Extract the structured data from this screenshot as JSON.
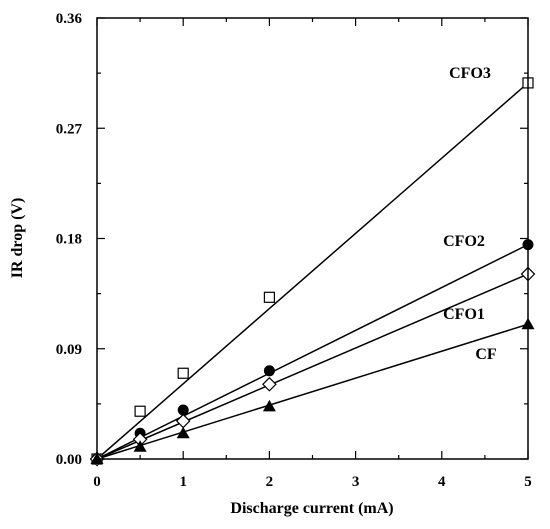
{
  "chart_data": {
    "type": "scatter",
    "xlabel": "Discharge current (mA)",
    "ylabel": "IR drop (V)",
    "xlim": [
      0,
      5
    ],
    "ylim": [
      0,
      0.36
    ],
    "x_ticks": [
      "0",
      "1",
      "2",
      "3",
      "4",
      "5"
    ],
    "y_ticks": [
      "0.00",
      "0.09",
      "0.18",
      "0.27",
      "0.36"
    ],
    "grid": false,
    "series": [
      {
        "name": "CFO3",
        "marker": "open-square",
        "fit_end": 0.307,
        "x": [
          0,
          0.5,
          1,
          2,
          5
        ],
        "y": [
          0.0,
          0.039,
          0.07,
          0.132,
          0.307
        ]
      },
      {
        "name": "CFO2",
        "marker": "filled-circle",
        "fit_end": 0.175,
        "x": [
          0,
          0.5,
          1,
          2,
          5
        ],
        "y": [
          0.0,
          0.021,
          0.04,
          0.072,
          0.175
        ]
      },
      {
        "name": "CFO1",
        "marker": "open-diamond",
        "fit_end": 0.151,
        "x": [
          0,
          0.5,
          1,
          2,
          5
        ],
        "y": [
          0.0,
          0.016,
          0.031,
          0.061,
          0.151
        ]
      },
      {
        "name": "CF",
        "marker": "filled-triangle",
        "fit_end": 0.11,
        "x": [
          0,
          0.5,
          1,
          2,
          5
        ],
        "y": [
          0.0,
          0.01,
          0.021,
          0.043,
          0.11
        ]
      }
    ]
  }
}
